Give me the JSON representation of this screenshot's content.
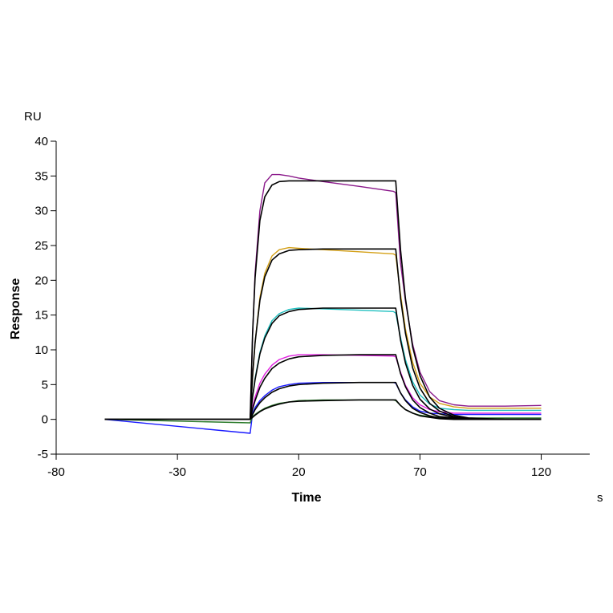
{
  "chart_data": {
    "type": "line",
    "title": "",
    "xlabel": "Time",
    "xunit": "s",
    "ylabel": "Response",
    "yunit": "RU",
    "xlim": [
      -80,
      140
    ],
    "ylim": [
      -5,
      40
    ],
    "xticks": [
      -80,
      -30,
      20,
      70,
      120
    ],
    "yticks": [
      -5,
      0,
      5,
      10,
      15,
      20,
      25,
      30,
      35,
      40
    ],
    "grid": false,
    "legend": "none",
    "x": [
      -60,
      0,
      1,
      2,
      4,
      6,
      9,
      12,
      16,
      20,
      30,
      45,
      59,
      60,
      62,
      64,
      67,
      70,
      74,
      78,
      84,
      90,
      105,
      120
    ],
    "series": [
      {
        "kind": "data",
        "color": "#8b1a8b",
        "values": [
          0,
          0,
          12,
          21,
          30,
          34,
          35.2,
          35.2,
          35.0,
          34.7,
          34.2,
          33.5,
          32.8,
          32.6,
          22.5,
          17,
          10.8,
          6.8,
          4.0,
          2.7,
          2.1,
          1.9,
          1.9,
          2.0
        ]
      },
      {
        "kind": "data",
        "color": "#d4a017",
        "values": [
          0,
          0,
          6,
          11,
          17.5,
          21,
          23.5,
          24.4,
          24.7,
          24.6,
          24.4,
          24.1,
          23.8,
          23.6,
          18,
          13,
          8.2,
          5.2,
          3.2,
          2.3,
          1.8,
          1.6,
          1.6,
          1.6
        ]
      },
      {
        "kind": "data",
        "color": "#20c0c0",
        "values": [
          0,
          0,
          3.3,
          5.9,
          9.6,
          12,
          14.2,
          15.2,
          15.8,
          16,
          15.9,
          15.7,
          15.5,
          15.3,
          11.8,
          8.6,
          5.4,
          3.5,
          2.2,
          1.6,
          1.4,
          1.3,
          1.3,
          1.3
        ]
      },
      {
        "kind": "data",
        "color": "#e020e0",
        "values": [
          0,
          0,
          1.8,
          3.2,
          5.2,
          6.5,
          7.8,
          8.6,
          9.1,
          9.3,
          9.3,
          9.2,
          9.1,
          9.0,
          6.8,
          4.9,
          3.1,
          2.1,
          1.4,
          1.1,
          0.9,
          0.9,
          0.9,
          0.9
        ]
      },
      {
        "kind": "data",
        "color": "#1a1aff",
        "values": [
          0,
          -2,
          0.9,
          1.7,
          2.7,
          3.4,
          4.2,
          4.7,
          5.0,
          5.2,
          5.3,
          5.3,
          5.3,
          5.2,
          3.8,
          2.8,
          1.8,
          1.2,
          0.9,
          0.8,
          0.7,
          0.7,
          0.7,
          0.7
        ]
      },
      {
        "kind": "data",
        "color": "#2a7a2a",
        "values": [
          0,
          -0.5,
          0.4,
          0.7,
          1.2,
          1.6,
          2.0,
          2.3,
          2.5,
          2.7,
          2.8,
          2.8,
          2.8,
          2.7,
          2.0,
          1.4,
          0.9,
          0.6,
          0.4,
          0.3,
          0.2,
          0.2,
          0.2,
          0.2
        ]
      },
      {
        "kind": "fit",
        "color": "#000000",
        "values": [
          0,
          0,
          12.4,
          20.3,
          28.6,
          32.0,
          33.7,
          34.2,
          34.3,
          34.3,
          34.3,
          34.3,
          34.3,
          34.3,
          24.4,
          17.4,
          10.4,
          6.3,
          3.2,
          1.6,
          0.6,
          0.2,
          0,
          0
        ]
      },
      {
        "kind": "fit",
        "color": "#000000",
        "values": [
          0,
          0,
          6.3,
          11.0,
          17.1,
          20.5,
          22.9,
          23.8,
          24.3,
          24.4,
          24.5,
          24.5,
          24.5,
          24.5,
          17.4,
          12.4,
          7.4,
          4.5,
          2.3,
          1.2,
          0.4,
          0.1,
          0,
          0
        ]
      },
      {
        "kind": "fit",
        "color": "#000000",
        "values": [
          0,
          0,
          3.2,
          5.7,
          9.4,
          11.7,
          13.8,
          14.9,
          15.5,
          15.8,
          16,
          16,
          16,
          16,
          11.4,
          8.1,
          4.9,
          2.9,
          1.5,
          0.8,
          0.3,
          0.1,
          0,
          0
        ]
      },
      {
        "kind": "fit",
        "color": "#000000",
        "values": [
          0,
          0,
          1.5,
          2.7,
          4.6,
          5.9,
          7.3,
          8.1,
          8.7,
          9.0,
          9.2,
          9.3,
          9.3,
          9.3,
          6.6,
          4.7,
          2.8,
          1.7,
          0.9,
          0.4,
          0.2,
          0.1,
          0,
          0
        ]
      },
      {
        "kind": "fit",
        "color": "#000000",
        "values": [
          0,
          0,
          0.7,
          1.4,
          2.4,
          3.1,
          3.9,
          4.4,
          4.8,
          5.0,
          5.2,
          5.3,
          5.3,
          5.3,
          3.8,
          2.7,
          1.6,
          1.0,
          0.5,
          0.2,
          0.1,
          0,
          0,
          0
        ]
      },
      {
        "kind": "fit",
        "color": "#000000",
        "values": [
          0,
          0,
          0.3,
          0.6,
          1.1,
          1.5,
          1.9,
          2.2,
          2.5,
          2.6,
          2.7,
          2.8,
          2.8,
          2.8,
          2.0,
          1.4,
          0.9,
          0.5,
          0.3,
          0.1,
          0,
          0,
          0,
          0
        ]
      }
    ]
  }
}
